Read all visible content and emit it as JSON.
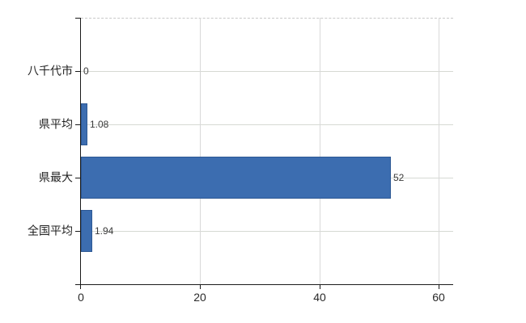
{
  "chart_data": {
    "type": "bar",
    "orientation": "horizontal",
    "title": "",
    "xlabel": "",
    "ylabel": "",
    "categories": [
      "八千代市",
      "県平均",
      "県最大",
      "全国平均"
    ],
    "values": [
      0,
      1.08,
      52,
      1.94
    ],
    "value_labels": [
      "0",
      "1.08",
      "52",
      "1.94"
    ],
    "xticks": [
      0,
      20,
      40,
      60
    ],
    "xtick_labels": [
      "0",
      "20",
      "40",
      "60"
    ],
    "xlim": [
      0,
      62.4
    ],
    "grid": true,
    "legend": false,
    "colors": {
      "bar_fill": "#3c6db0",
      "bar_border": "#2d5894",
      "h_grid": "#d6d9d3",
      "v_grid": "#d9d9d9",
      "top_dashed_border": "#c9c9c9",
      "axis": "#1a1a1a",
      "category_text": "#1f1f1f",
      "tick_text": "#2a2a2a",
      "value_text": "#3a3a3a",
      "background": "#ffffff"
    }
  }
}
